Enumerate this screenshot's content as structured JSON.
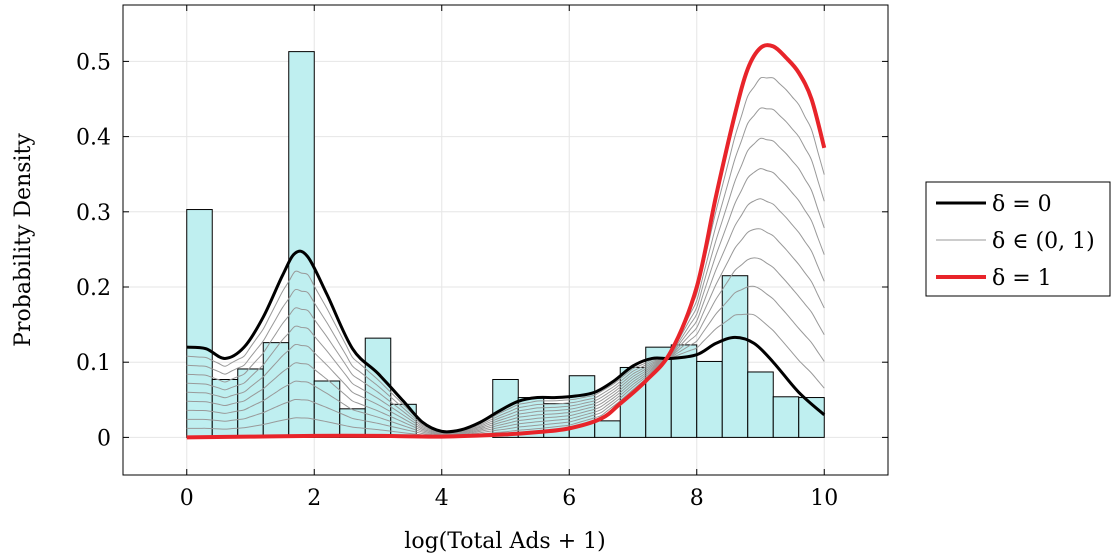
{
  "chart_data": {
    "type": "histogram+density",
    "xlabel": "log(Total Ads + 1)",
    "ylabel": "Probability Density",
    "xlim": [
      -1,
      11
    ],
    "ylim": [
      -0.05,
      0.575
    ],
    "xticks": [
      0,
      2,
      4,
      6,
      8,
      10
    ],
    "yticks": [
      0,
      0.1,
      0.2,
      0.3,
      0.4,
      0.5
    ],
    "xtick_labels": [
      "0",
      "2",
      "4",
      "6",
      "8",
      "10"
    ],
    "ytick_labels": [
      "0",
      "0.1",
      "0.2",
      "0.3",
      "0.4",
      "0.5"
    ],
    "grid": true,
    "legend_position": "right-outside",
    "colors": {
      "histogram_fill": "#bfeff0",
      "histogram_edge": "#000000",
      "delta0": "#000000",
      "delta_mid": "#999999",
      "delta1": "#e8242a",
      "grid": "#e6e6e6"
    },
    "histogram": {
      "bin_start": 0,
      "bin_width": 0.4,
      "values": [
        0.303,
        0.077,
        0.091,
        0.126,
        0.513,
        0.075,
        0.038,
        0.132,
        0.044,
        0,
        0,
        0,
        0.077,
        0.053,
        0.045,
        0.082,
        0.022,
        0.093,
        0.12,
        0.123,
        0.101,
        0.215,
        0.087,
        0.054,
        0.053
      ]
    },
    "series": [
      {
        "name": "δ = 0",
        "x": [
          0,
          0.3,
          0.6,
          0.9,
          1.2,
          1.5,
          1.7,
          1.9,
          2.2,
          2.6,
          3.0,
          3.4,
          3.7,
          4.0,
          4.3,
          4.6,
          4.9,
          5.2,
          5.5,
          5.8,
          6.1,
          6.4,
          6.7,
          7.0,
          7.3,
          7.6,
          8.0,
          8.3,
          8.6,
          8.9,
          9.2,
          9.6,
          10.0
        ],
        "y": [
          0.12,
          0.118,
          0.105,
          0.12,
          0.16,
          0.215,
          0.245,
          0.24,
          0.19,
          0.118,
          0.085,
          0.048,
          0.02,
          0.008,
          0.01,
          0.02,
          0.035,
          0.048,
          0.053,
          0.053,
          0.055,
          0.06,
          0.075,
          0.095,
          0.105,
          0.105,
          0.11,
          0.125,
          0.133,
          0.125,
          0.1,
          0.06,
          0.03
        ]
      },
      {
        "name": "δ ∈ (0, 1)",
        "x": [],
        "y": []
      },
      {
        "name": "δ = 1",
        "x": [
          0,
          1.0,
          2.0,
          3.0,
          4.0,
          5.0,
          5.5,
          6.0,
          6.5,
          6.8,
          7.2,
          7.6,
          8.0,
          8.3,
          8.6,
          8.8,
          9.0,
          9.2,
          9.4,
          9.6,
          9.8,
          10.0
        ],
        "y": [
          0,
          0.001,
          0.002,
          0.002,
          0.001,
          0.004,
          0.007,
          0.012,
          0.025,
          0.045,
          0.075,
          0.115,
          0.2,
          0.32,
          0.43,
          0.49,
          0.518,
          0.52,
          0.505,
          0.485,
          0.45,
          0.385
        ]
      }
    ],
    "intermediate_curve_count": 9
  }
}
